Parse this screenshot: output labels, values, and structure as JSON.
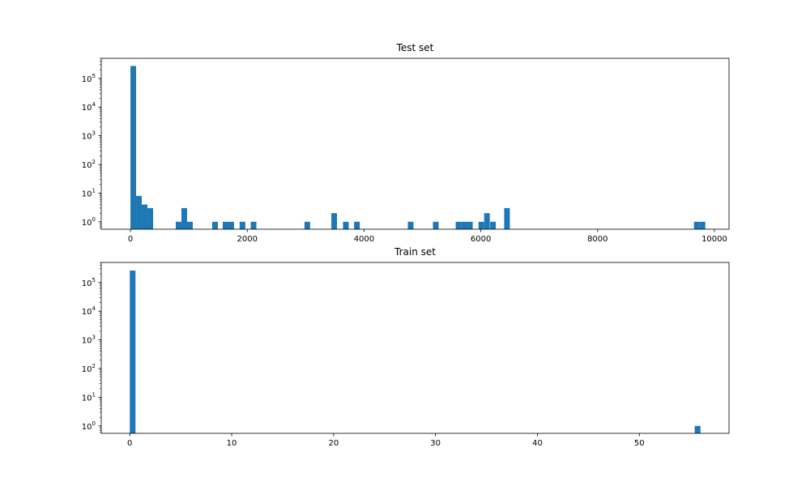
{
  "chart_data": [
    {
      "type": "bar",
      "title": "Test set",
      "xlabel": "",
      "ylabel": "",
      "xlim": [
        -500,
        10250
      ],
      "ylim": [
        0.55,
        500000
      ],
      "yscale": "log",
      "bin_width": 97,
      "bar_color": "#1f77b4",
      "x_ticks": [
        0,
        2000,
        4000,
        6000,
        8000,
        10000
      ],
      "x_tick_labels": [
        "0",
        "2000",
        "4000",
        "6000",
        "8000",
        "10000"
      ],
      "y_ticks": [
        1,
        10,
        100,
        1000,
        10000,
        100000
      ],
      "y_tick_labels": [
        {
          "base": "10",
          "exp": "0"
        },
        {
          "base": "10",
          "exp": "1"
        },
        {
          "base": "10",
          "exp": "2"
        },
        {
          "base": "10",
          "exp": "3"
        },
        {
          "base": "10",
          "exp": "4"
        },
        {
          "base": "10",
          "exp": "5"
        }
      ],
      "bars": [
        {
          "x": 0,
          "value": 270000
        },
        {
          "x": 97,
          "value": 8
        },
        {
          "x": 194,
          "value": 4
        },
        {
          "x": 291,
          "value": 3
        },
        {
          "x": 776,
          "value": 1
        },
        {
          "x": 873,
          "value": 3
        },
        {
          "x": 970,
          "value": 1
        },
        {
          "x": 1400,
          "value": 1
        },
        {
          "x": 1580,
          "value": 1
        },
        {
          "x": 1677,
          "value": 1
        },
        {
          "x": 1870,
          "value": 1
        },
        {
          "x": 2060,
          "value": 1
        },
        {
          "x": 2980,
          "value": 1
        },
        {
          "x": 3440,
          "value": 2
        },
        {
          "x": 3640,
          "value": 1
        },
        {
          "x": 3830,
          "value": 1
        },
        {
          "x": 4750,
          "value": 1
        },
        {
          "x": 5180,
          "value": 1
        },
        {
          "x": 5570,
          "value": 1
        },
        {
          "x": 5667,
          "value": 1
        },
        {
          "x": 5764,
          "value": 1
        },
        {
          "x": 5960,
          "value": 1
        },
        {
          "x": 6057,
          "value": 2
        },
        {
          "x": 6160,
          "value": 1
        },
        {
          "x": 6400,
          "value": 3
        },
        {
          "x": 9650,
          "value": 1
        },
        {
          "x": 9747,
          "value": 1
        }
      ]
    },
    {
      "type": "bar",
      "title": "Train set",
      "xlabel": "",
      "ylabel": "",
      "xlim": [
        -2.8,
        58.8
      ],
      "ylim": [
        0.55,
        500000
      ],
      "yscale": "log",
      "bin_width": 0.56,
      "bar_color": "#1f77b4",
      "x_ticks": [
        0,
        10,
        20,
        30,
        40,
        50
      ],
      "x_tick_labels": [
        "0",
        "10",
        "20",
        "30",
        "40",
        "50"
      ],
      "y_ticks": [
        1,
        10,
        100,
        1000,
        10000,
        100000
      ],
      "y_tick_labels": [
        {
          "base": "10",
          "exp": "0"
        },
        {
          "base": "10",
          "exp": "1"
        },
        {
          "base": "10",
          "exp": "2"
        },
        {
          "base": "10",
          "exp": "3"
        },
        {
          "base": "10",
          "exp": "4"
        },
        {
          "base": "10",
          "exp": "5"
        }
      ],
      "bars": [
        {
          "x": 0,
          "value": 260000
        },
        {
          "x": 55.44,
          "value": 1
        }
      ]
    }
  ]
}
